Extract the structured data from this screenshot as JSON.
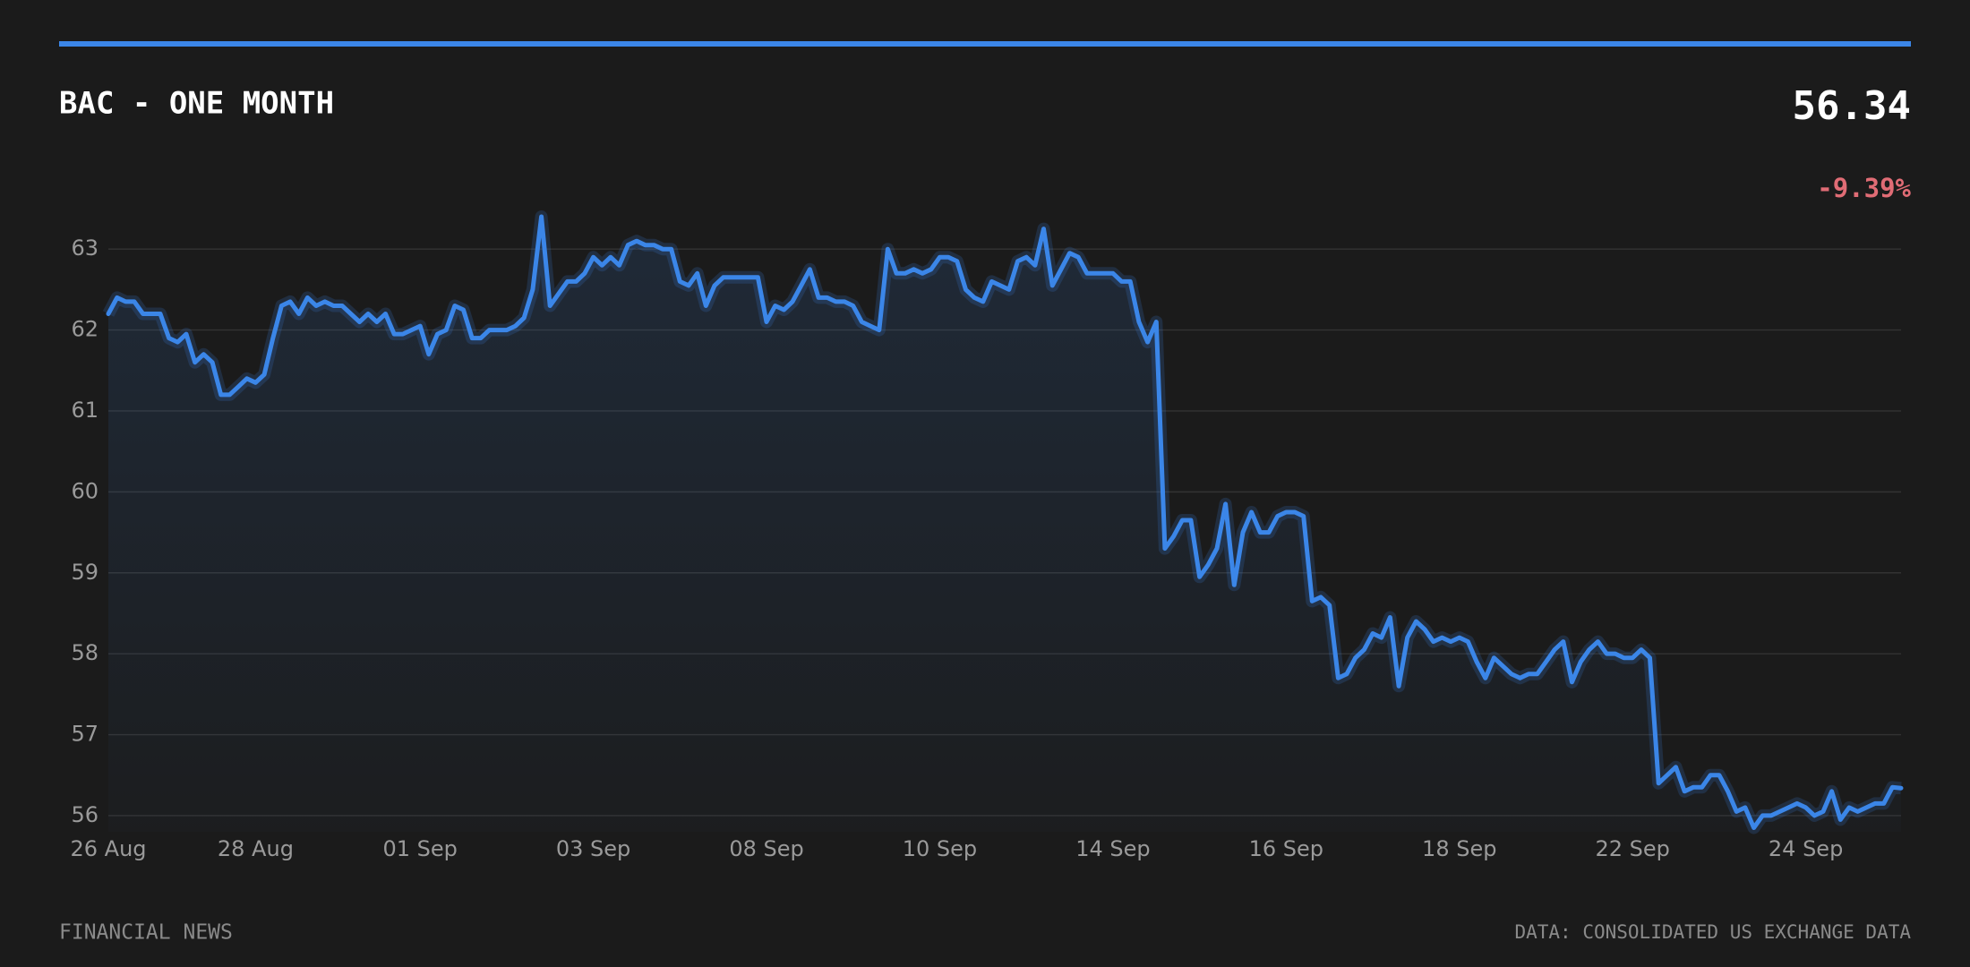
{
  "header": {
    "price": "56.34",
    "change": "-9.39%"
  },
  "footer": {
    "left": "FINANCIAL NEWS",
    "right": "DATA: CONSOLIDATED US EXCHANGE DATA"
  },
  "chart_data": {
    "type": "line",
    "title": "BAC - ONE MONTH",
    "categories": [
      "26 Aug",
      null,
      null,
      null,
      null,
      null,
      null,
      null,
      null,
      null,
      null,
      null,
      null,
      null,
      null,
      null,
      null,
      "28 Aug",
      null,
      null,
      null,
      null,
      null,
      null,
      null,
      null,
      null,
      null,
      null,
      null,
      null,
      null,
      null,
      null,
      null,
      null,
      "01 Sep",
      null,
      null,
      null,
      null,
      null,
      null,
      null,
      null,
      null,
      null,
      null,
      null,
      null,
      null,
      null,
      null,
      null,
      null,
      null,
      "03 Sep",
      null,
      null,
      null,
      null,
      null,
      null,
      null,
      null,
      null,
      null,
      null,
      null,
      null,
      null,
      null,
      null,
      null,
      null,
      null,
      "08 Sep",
      null,
      null,
      null,
      null,
      null,
      null,
      null,
      null,
      null,
      null,
      null,
      null,
      null,
      null,
      null,
      null,
      null,
      null,
      null,
      "10 Sep",
      null,
      null,
      null,
      null,
      null,
      null,
      null,
      null,
      null,
      null,
      null,
      null,
      null,
      null,
      null,
      null,
      null,
      null,
      null,
      "14 Sep",
      null,
      null,
      null,
      null,
      null,
      null,
      null,
      null,
      null,
      null,
      null,
      null,
      null,
      null,
      null,
      null,
      null,
      null,
      null,
      "16 Sep",
      null,
      null,
      null,
      null,
      null,
      null,
      null,
      null,
      null,
      null,
      null,
      null,
      null,
      null,
      null,
      null,
      null,
      null,
      null,
      "18 Sep",
      null,
      null,
      null,
      null,
      null,
      null,
      null,
      null,
      null,
      null,
      null,
      null,
      null,
      null,
      null,
      null,
      null,
      null,
      null,
      "22 Sep",
      null,
      null,
      null,
      null,
      null,
      null,
      null,
      null,
      null,
      null,
      null,
      null,
      null,
      null,
      null,
      null,
      null,
      null,
      null,
      "24 Sep",
      null,
      null,
      null,
      null,
      null,
      null,
      null,
      null,
      null,
      null,
      null
    ],
    "series": [
      {
        "name": "BAC",
        "color": "#3b86e8",
        "values": [
          62.2,
          62.4,
          62.35,
          62.35,
          62.2,
          62.2,
          62.2,
          61.9,
          61.85,
          61.95,
          61.6,
          61.7,
          61.6,
          61.2,
          61.2,
          61.3,
          61.4,
          61.35,
          61.45,
          61.9,
          62.3,
          62.35,
          62.2,
          62.4,
          62.3,
          62.35,
          62.3,
          62.3,
          62.2,
          62.1,
          62.2,
          62.1,
          62.2,
          61.95,
          61.95,
          62.0,
          62.05,
          61.7,
          61.95,
          62.0,
          62.3,
          62.25,
          61.9,
          61.9,
          62.0,
          62.0,
          62.0,
          62.05,
          62.15,
          62.5,
          63.4,
          62.3,
          62.45,
          62.6,
          62.6,
          62.7,
          62.9,
          62.8,
          62.9,
          62.8,
          63.05,
          63.1,
          63.05,
          63.05,
          63.0,
          63.0,
          62.6,
          62.55,
          62.7,
          62.3,
          62.55,
          62.65,
          62.65,
          62.65,
          62.65,
          62.65,
          62.1,
          62.3,
          62.25,
          62.35,
          62.55,
          62.75,
          62.4,
          62.4,
          62.35,
          62.35,
          62.3,
          62.1,
          62.05,
          62.0,
          63.0,
          62.7,
          62.7,
          62.75,
          62.7,
          62.75,
          62.9,
          62.9,
          62.85,
          62.5,
          62.4,
          62.35,
          62.6,
          62.55,
          62.5,
          62.85,
          62.9,
          62.8,
          63.25,
          62.55,
          62.75,
          62.95,
          62.9,
          62.7,
          62.7,
          62.7,
          62.7,
          62.6,
          62.6,
          62.1,
          61.85,
          62.1,
          59.3,
          59.45,
          59.65,
          59.65,
          58.95,
          59.1,
          59.3,
          59.85,
          58.85,
          59.5,
          59.75,
          59.5,
          59.5,
          59.7,
          59.75,
          59.75,
          59.7,
          58.65,
          58.7,
          58.6,
          57.7,
          57.75,
          57.95,
          58.05,
          58.25,
          58.2,
          58.45,
          57.6,
          58.2,
          58.4,
          58.3,
          58.15,
          58.2,
          58.15,
          58.2,
          58.15,
          57.9,
          57.7,
          57.95,
          57.85,
          57.75,
          57.7,
          57.75,
          57.75,
          57.9,
          58.05,
          58.15,
          57.65,
          57.9,
          58.05,
          58.15,
          58.0,
          58.0,
          57.95,
          57.95,
          58.05,
          57.95,
          56.4,
          56.5,
          56.6,
          56.3,
          56.35,
          56.35,
          56.5,
          56.5,
          56.3,
          56.05,
          56.1,
          55.85,
          56.0,
          56.0,
          56.05,
          56.1,
          56.15,
          56.1,
          56.0,
          56.05,
          56.3,
          55.95,
          56.1,
          56.05,
          56.1,
          56.15,
          56.15,
          56.35,
          56.34
        ]
      }
    ],
    "ylim": [
      55.8,
      63.5
    ],
    "yticks": [
      56,
      57,
      58,
      59,
      60,
      61,
      62,
      63
    ],
    "grid": true
  }
}
